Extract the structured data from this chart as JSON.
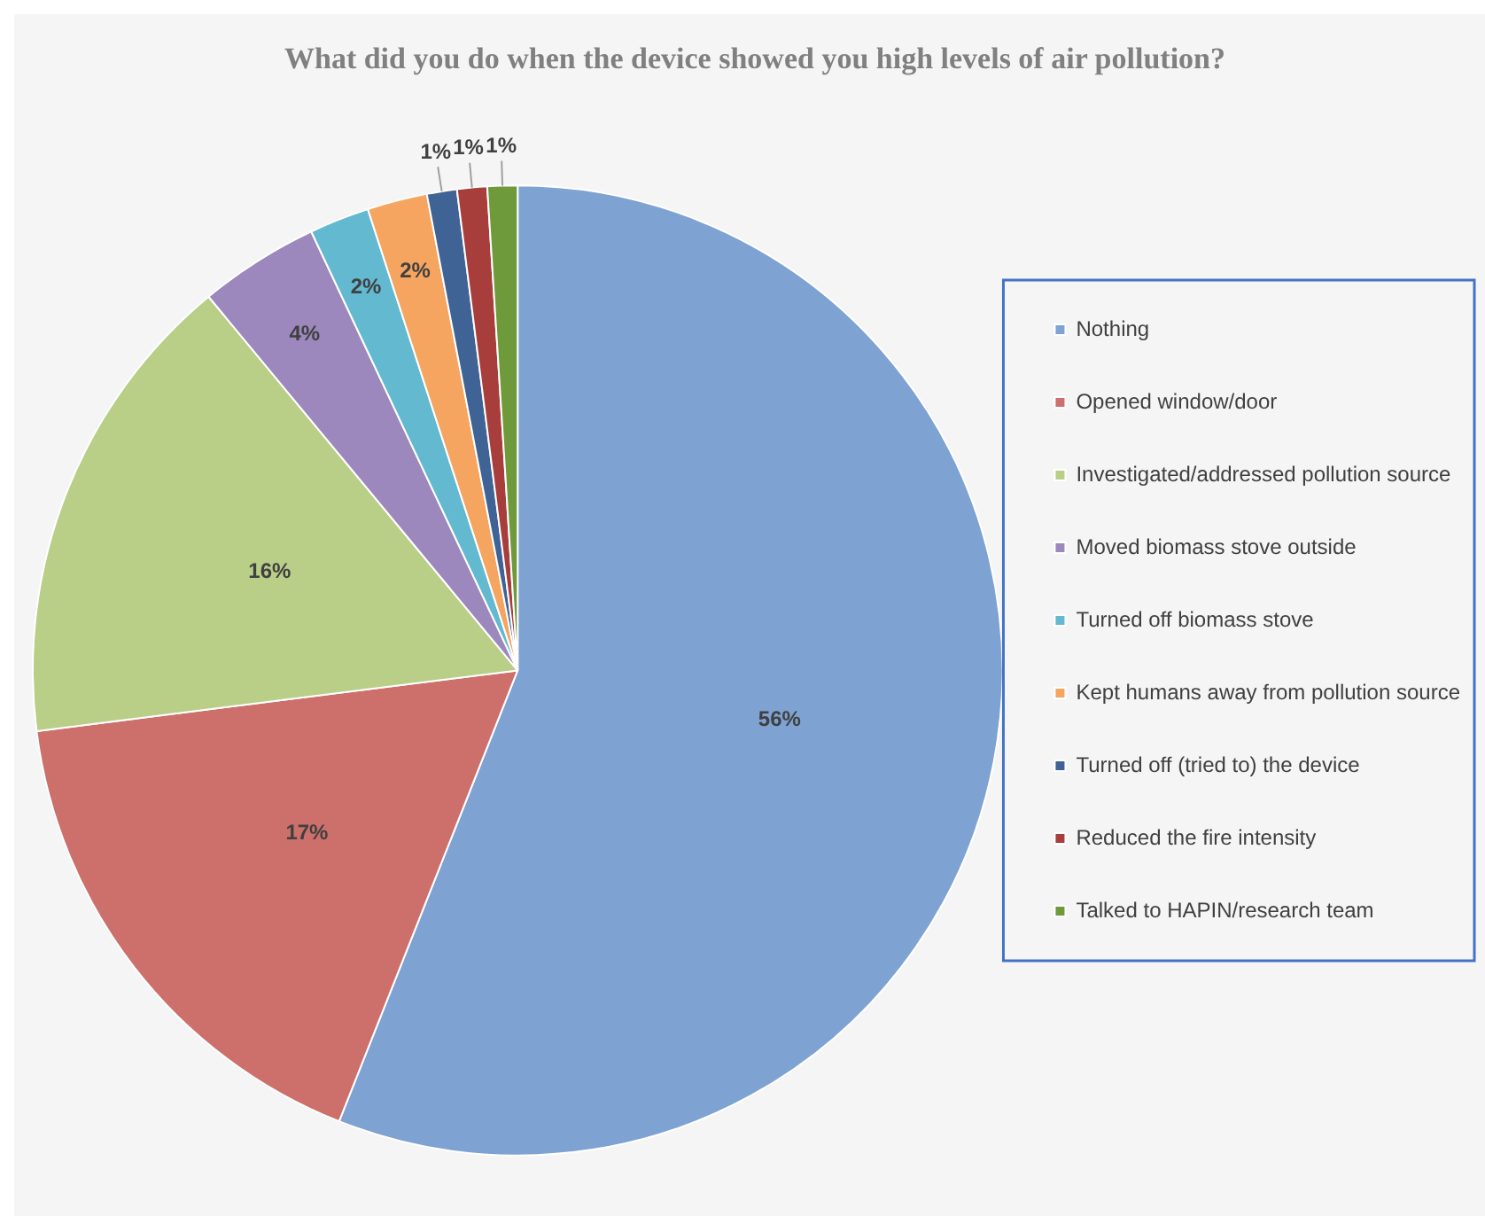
{
  "chart_data": {
    "type": "pie",
    "title": "What did you do when the device showed you high levels of air pollution?",
    "categories": [
      "Nothing",
      "Opened window/door",
      "Investigated/addressed pollution source",
      "Moved biomass stove outside",
      "Turned off biomass stove",
      "Kept humans away from pollution source",
      "Turned off (tried to) the device",
      "Reduced the fire intensity",
      "Talked to HAPIN/research team"
    ],
    "values": [
      56,
      17,
      16,
      4,
      2,
      2,
      1,
      1,
      1
    ],
    "colors": [
      "#7ea2d2",
      "#cd6f6b",
      "#b9ce86",
      "#9c88bd",
      "#62b9d0",
      "#f5a55f",
      "#3e6394",
      "#a73e3c",
      "#6e9a3c"
    ],
    "value_labels": [
      "56%",
      "17%",
      "16%",
      "4%",
      "2%",
      "2%",
      "1%",
      "1%",
      "1%"
    ],
    "legend": "right"
  }
}
